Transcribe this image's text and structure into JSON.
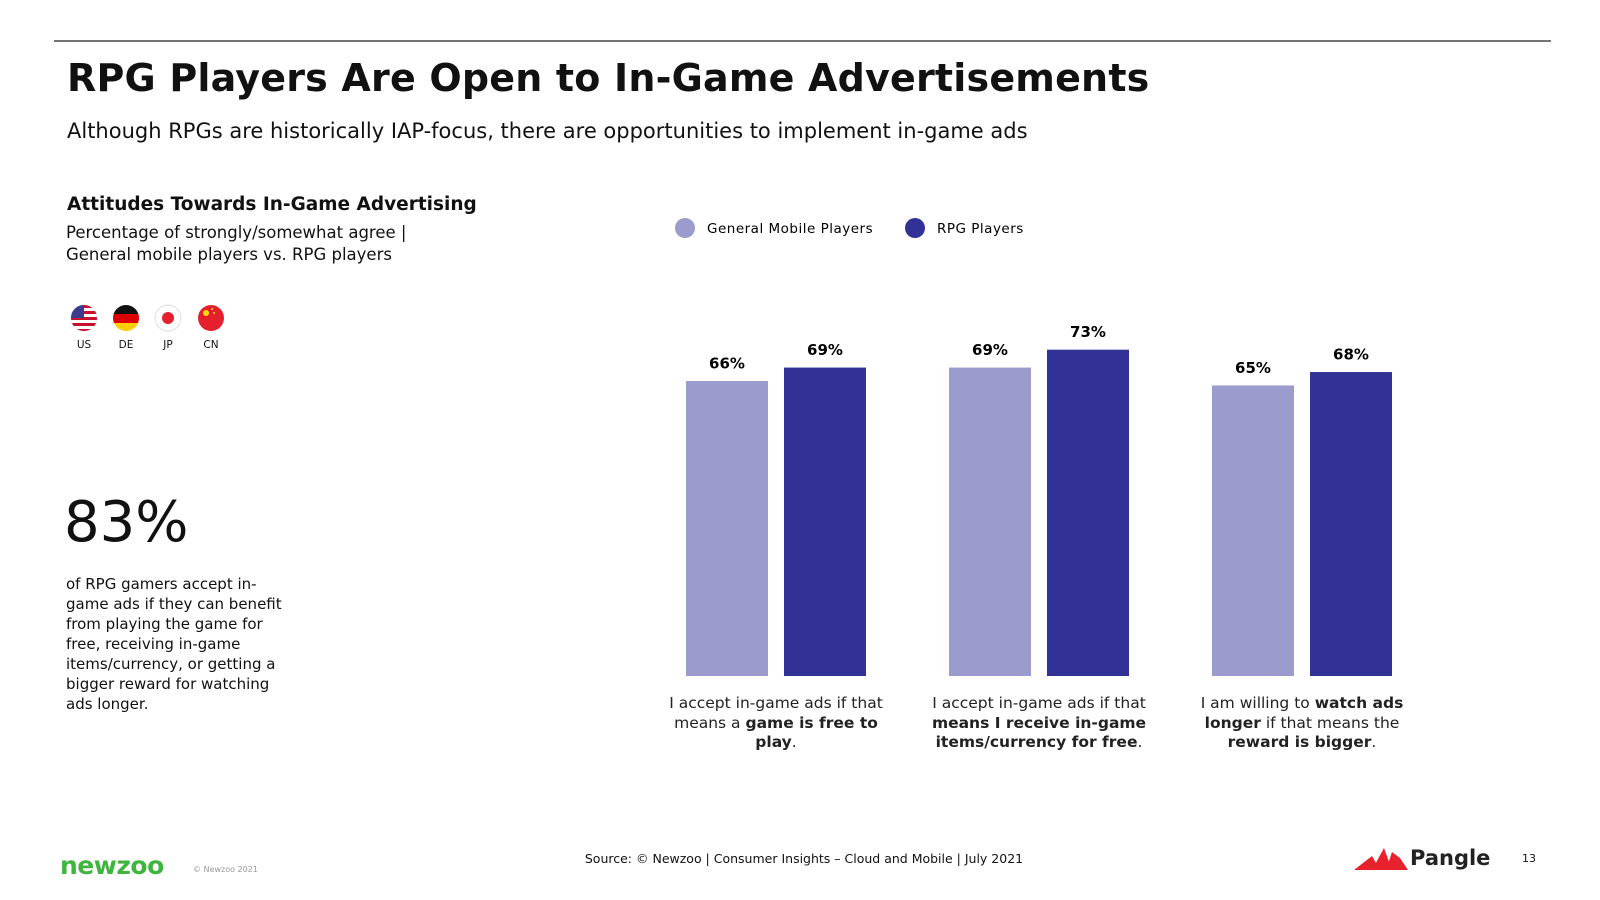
{
  "header": {
    "title": "RPG Players Are Open to In-Game Advertisements",
    "subtitle": "Although RPGs are historically IAP-focus, there are opportunities to implement in-game ads"
  },
  "flags": [
    "US",
    "DE",
    "JP",
    "CN"
  ],
  "stat": {
    "figure": "83%",
    "text": "of RPG gamers accept in-game ads if they can benefit from playing the game for free, receiving in-game items/currency, or getting a bigger reward for watching ads longer."
  },
  "chart_data": {
    "type": "bar",
    "title": "Attitudes Towards In-Game Advertising",
    "subtitle": [
      "Percentage of strongly/somewhat agree |",
      "General mobile players vs. RPG players"
    ],
    "categories": [
      [
        {
          "text": "I accept in-game ads if that means a ",
          "bold": false
        },
        {
          "text": "game is free to play",
          "bold": true
        },
        {
          "text": ".",
          "bold": false
        }
      ],
      [
        {
          "text": "I accept in-game ads if that ",
          "bold": false
        },
        {
          "text": "means I receive in-game items/currency for free",
          "bold": true
        },
        {
          "text": ".",
          "bold": false
        }
      ],
      [
        {
          "text": "I am willing to ",
          "bold": false
        },
        {
          "text": "watch ads longer",
          "bold": true
        },
        {
          "text": " if that means the ",
          "bold": false
        },
        {
          "text": "reward is bigger",
          "bold": true
        },
        {
          "text": ".",
          "bold": false
        }
      ]
    ],
    "series": [
      {
        "name": "General Mobile Players",
        "color": "#9b9bcd",
        "values": [
          66,
          69,
          65
        ],
        "value_labels": [
          "66%",
          "69%",
          "65%"
        ]
      },
      {
        "name": "RPG Players",
        "color": "#323296",
        "values": [
          69,
          73,
          68
        ],
        "value_labels": [
          "69%",
          "73%",
          "68%"
        ]
      }
    ],
    "ylim": [
      0,
      100
    ]
  },
  "footer": {
    "source": "Source: © Newzoo | Consumer Insights – Cloud and Mobile | July 2021",
    "brand": "newzoo",
    "copyright": "© Newzoo 2021",
    "partner": "Pangle",
    "page": "13"
  }
}
